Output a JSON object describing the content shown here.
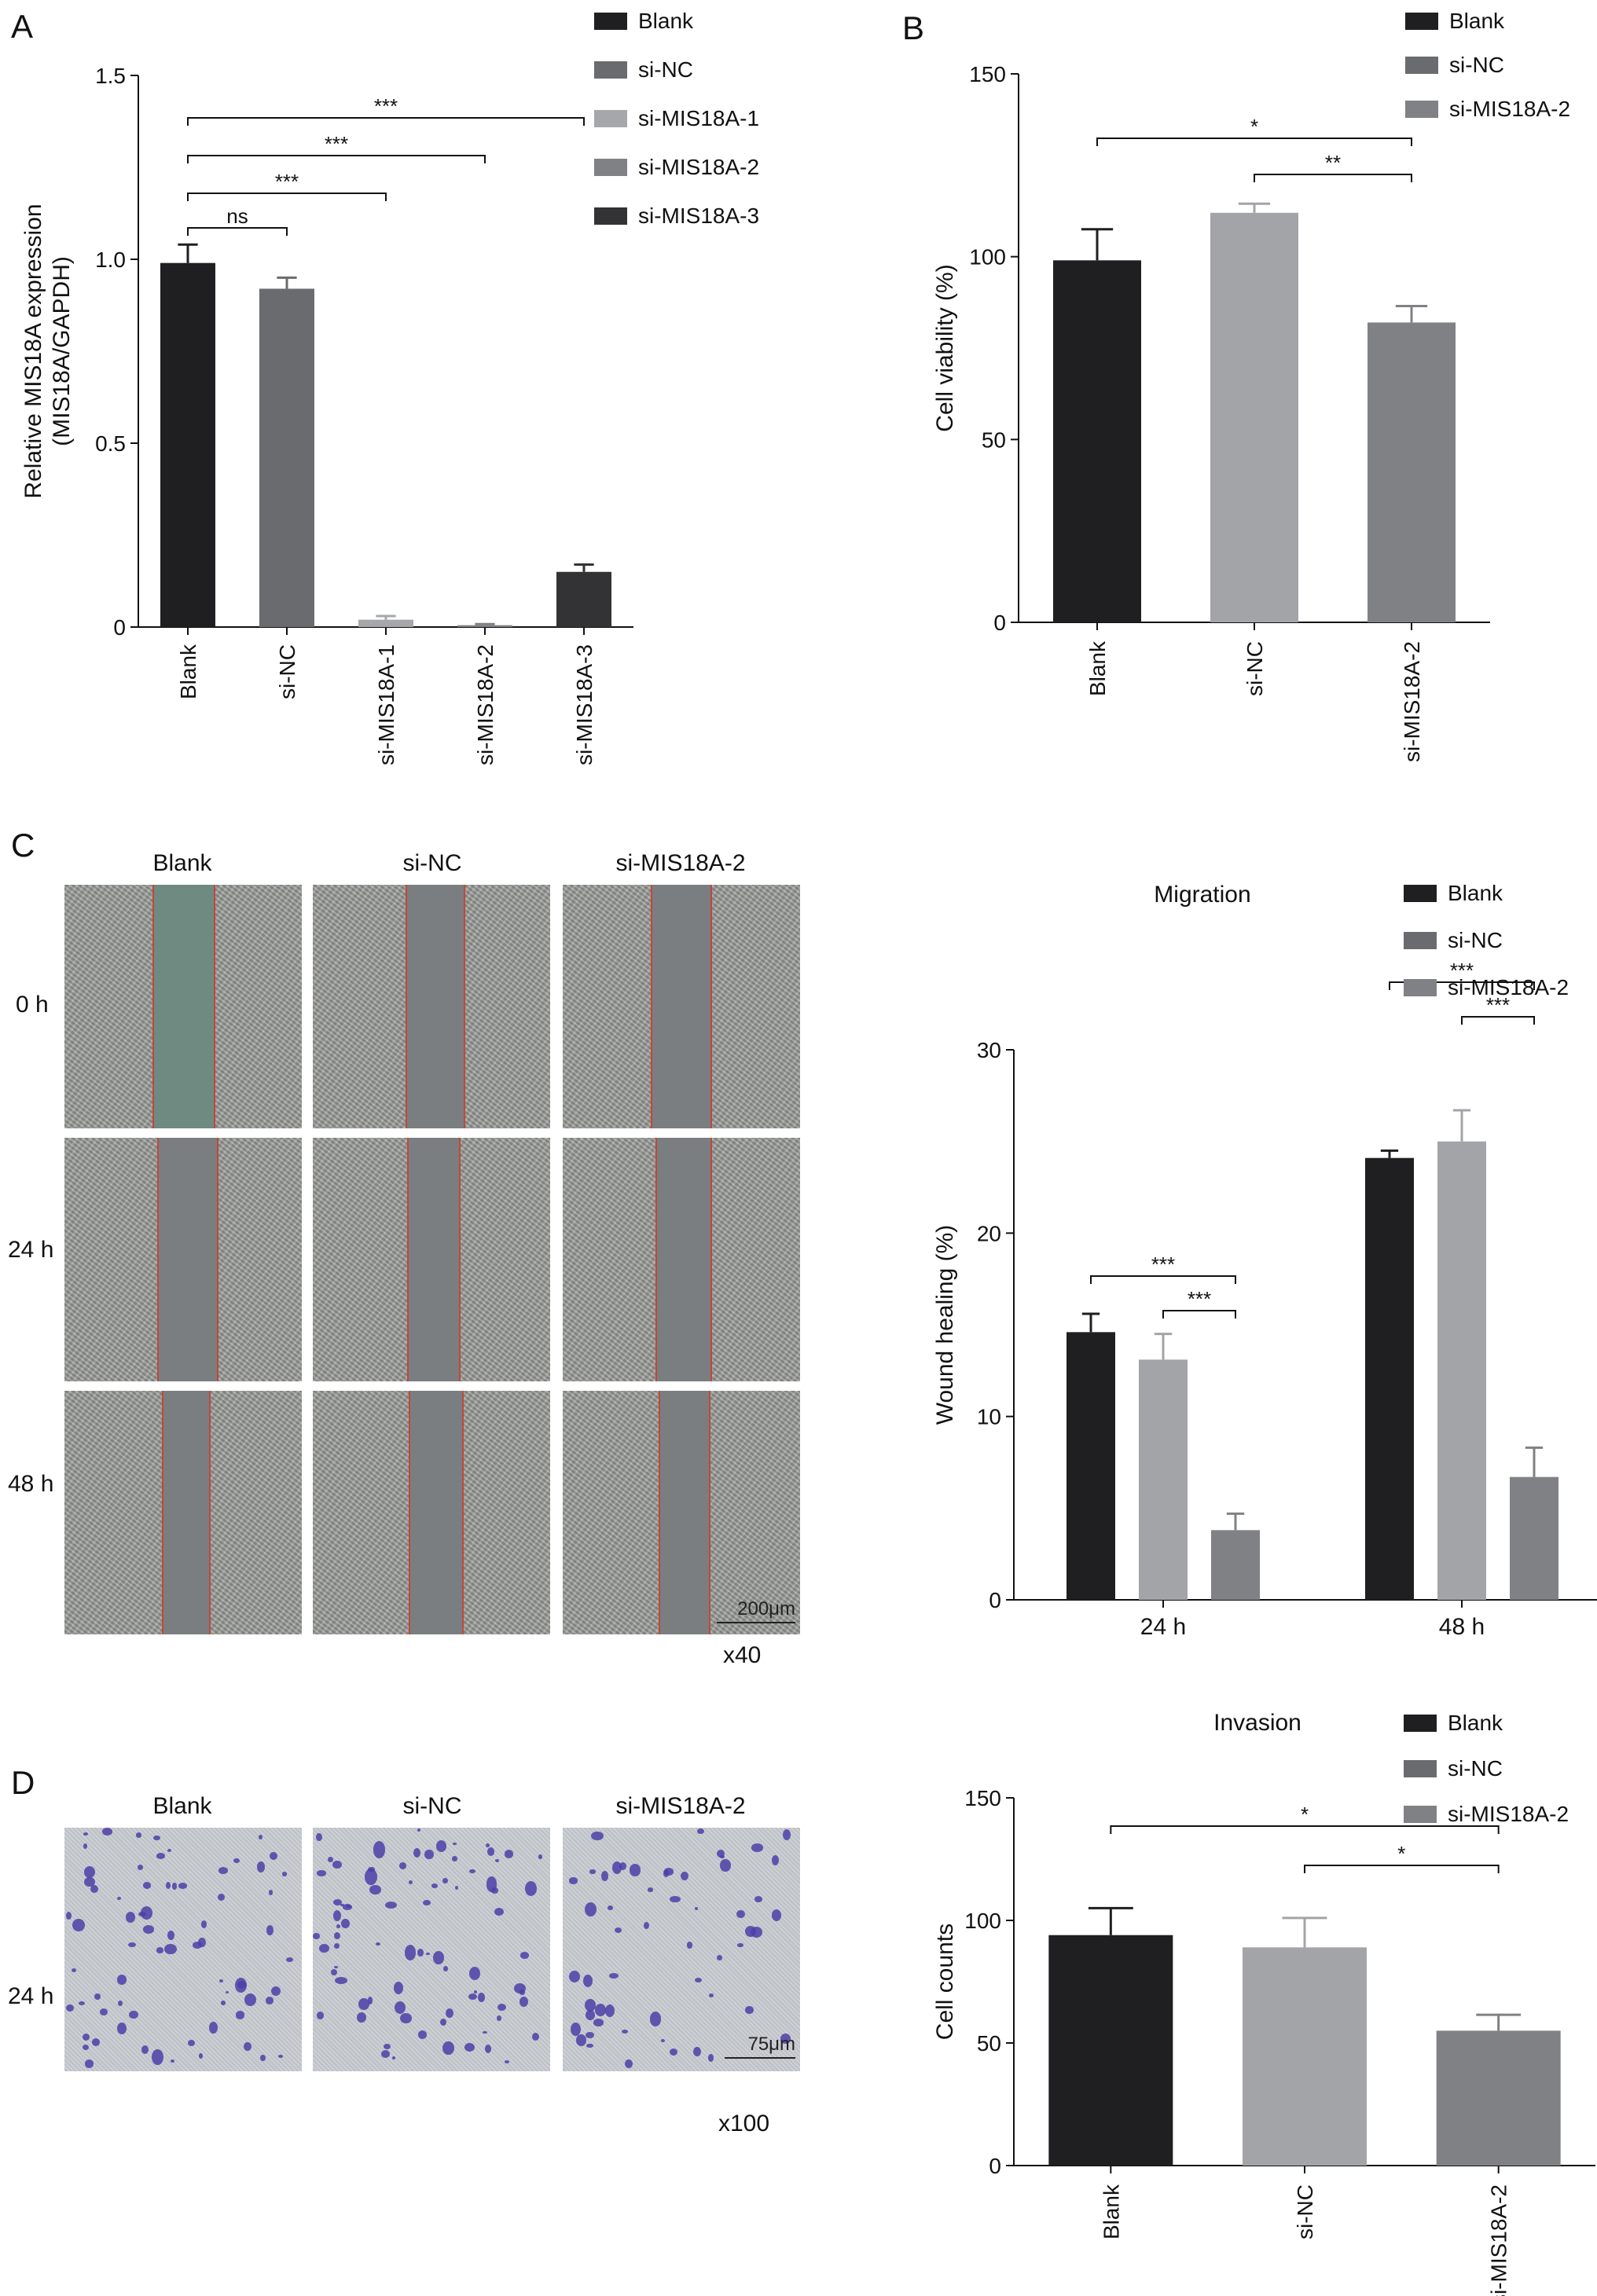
{
  "panels": {
    "a": "A",
    "b": "B",
    "c": "C",
    "d": "D"
  },
  "colors": {
    "Blank": "#1f1f21",
    "si-NC": "#6a6b6e",
    "si-MIS18A-1": "#a6a7aa",
    "si-MIS18A-2": "#808185",
    "si-MIS18A-3": "#333335",
    "si-NC-light": "#a3a4a8"
  },
  "chart_data": [
    {
      "id": "A",
      "type": "bar",
      "categories": [
        "Blank",
        "si-NC",
        "si-MIS18A-1",
        "si-MIS18A-2",
        "si-MIS18A-3"
      ],
      "values": [
        0.99,
        0.92,
        0.02,
        0.005,
        0.15
      ],
      "errors": [
        0.05,
        0.03,
        0.01,
        0.003,
        0.02
      ],
      "ylabel": "Relative MIS18A expression",
      "ylabel2": "(MIS18A/GAPDH)",
      "ylim": [
        0,
        1.5
      ],
      "yticks": [
        "0",
        "0.5",
        "1.0",
        "1.5"
      ],
      "legend": [
        "Blank",
        "si-NC",
        "si-MIS18A-1",
        "si-MIS18A-2",
        "si-MIS18A-3"
      ],
      "legend_position": "top-right",
      "significance": [
        {
          "from": 0,
          "to": 1,
          "label": "ns"
        },
        {
          "from": 0,
          "to": 2,
          "label": "***"
        },
        {
          "from": 0,
          "to": 3,
          "label": "***"
        },
        {
          "from": 0,
          "to": 4,
          "label": "***"
        }
      ]
    },
    {
      "id": "B",
      "type": "bar",
      "categories": [
        "Blank",
        "si-NC",
        "si-MIS18A-2"
      ],
      "values": [
        99,
        112,
        82
      ],
      "errors": [
        8.5,
        2.5,
        4.5
      ],
      "ylabel": "Cell viability (%)",
      "ylim": [
        0,
        150
      ],
      "yticks": [
        "0",
        "50",
        "100",
        "150"
      ],
      "legend": [
        "Blank",
        "si-NC",
        "si-MIS18A-2"
      ],
      "legend_position": "top-right",
      "significance": [
        {
          "from": 0,
          "to": 2,
          "label": "*"
        },
        {
          "from": 1,
          "to": 2,
          "label": "**"
        }
      ]
    },
    {
      "id": "C",
      "type": "bar",
      "title": "Migration",
      "categories": [
        "24 h",
        "48 h"
      ],
      "series": [
        {
          "name": "Blank",
          "values": [
            14.6,
            24.1
          ],
          "errors": [
            1.0,
            0.4
          ]
        },
        {
          "name": "si-NC",
          "values": [
            13.1,
            25.0
          ],
          "errors": [
            1.4,
            1.7
          ]
        },
        {
          "name": "si-MIS18A-2",
          "values": [
            3.8,
            6.7
          ],
          "errors": [
            0.9,
            1.6
          ]
        }
      ],
      "ylabel": "Wound healing (%)",
      "ylim": [
        0,
        30
      ],
      "yticks": [
        "0",
        "10",
        "20",
        "30"
      ],
      "legend_position": "top-right",
      "significance": [
        {
          "group": 0,
          "from": 0,
          "to": 2,
          "label": "***"
        },
        {
          "group": 0,
          "from": 1,
          "to": 2,
          "label": "***"
        },
        {
          "group": 1,
          "from": 0,
          "to": 2,
          "label": "***"
        },
        {
          "group": 1,
          "from": 1,
          "to": 2,
          "label": "***"
        }
      ]
    },
    {
      "id": "D",
      "type": "bar",
      "title": "Invasion",
      "categories": [
        "Blank",
        "si-NC",
        "si-MIS18A-2"
      ],
      "values": [
        94,
        89,
        55
      ],
      "errors": [
        11,
        12,
        6.5
      ],
      "ylabel": "Cell counts",
      "ylim": [
        0,
        150
      ],
      "yticks": [
        "0",
        "50",
        "100",
        "150"
      ],
      "legend": [
        "Blank",
        "si-NC",
        "si-MIS18A-2"
      ],
      "legend_position": "top-right",
      "significance": [
        {
          "from": 0,
          "to": 2,
          "label": "*"
        },
        {
          "from": 1,
          "to": 2,
          "label": "*"
        }
      ]
    }
  ],
  "wound_assay": {
    "columns": [
      "Blank",
      "si-NC",
      "si-MIS18A-2"
    ],
    "rows": [
      "0 h",
      "24 h",
      "48 h"
    ],
    "scale": "200μm",
    "magnification": "x40"
  },
  "invasion_assay": {
    "columns": [
      "Blank",
      "si-NC",
      "si-MIS18A-2"
    ],
    "rows": [
      "24 h"
    ],
    "scale": "75μm",
    "magnification": "x100"
  }
}
